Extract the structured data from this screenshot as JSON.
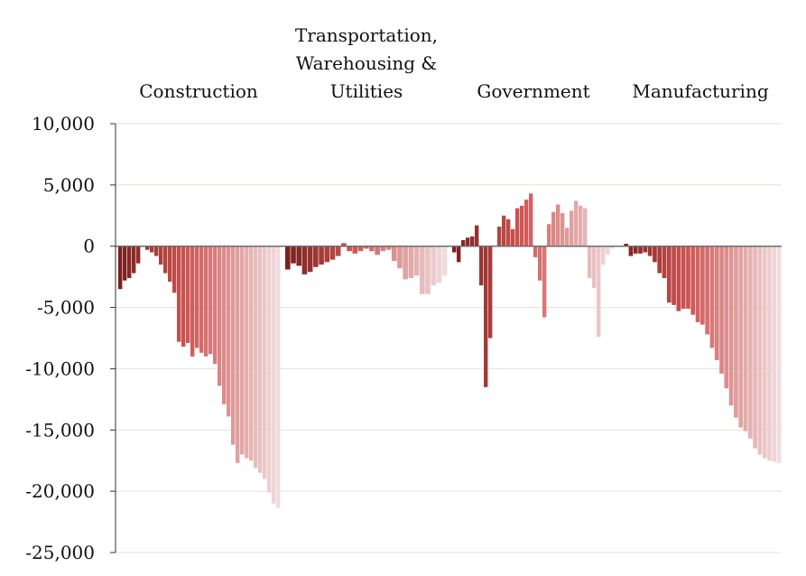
{
  "chart_data": {
    "type": "bar",
    "ylim": [
      -25000,
      10000
    ],
    "yticks": [
      10000,
      5000,
      0,
      -5000,
      -10000,
      -15000,
      -20000,
      -25000
    ],
    "ytick_labels": [
      "10,000",
      "5,000",
      "0",
      "-5,000",
      "-10,000",
      "-15,000",
      "-20,000",
      "-25,000"
    ],
    "grid": true,
    "group_labels": [
      [
        "Construction"
      ],
      [
        "Transportation,",
        "Warehousing &",
        "Utilities"
      ],
      [
        "Government"
      ],
      [
        "Manufacturing"
      ]
    ],
    "series": [
      {
        "values": [
          -3500,
          -2800,
          -2600,
          -2200,
          -1400,
          0,
          -300,
          -500,
          -800,
          -1500,
          -2200,
          -2900,
          -3800,
          -7800,
          -8200,
          -7900,
          -9000,
          -8300,
          -8700,
          -9000,
          -8800,
          -9600,
          -11400,
          -12900,
          -13900,
          -16200,
          -17700,
          -17000,
          -17300,
          -17500,
          -18100,
          -18500,
          -19000,
          -20100,
          -21000,
          -21400
        ]
      },
      {
        "values": [
          -1900,
          -1400,
          -1600,
          -2300,
          -2100,
          -1700,
          -1500,
          -1300,
          -1100,
          -800,
          250,
          -400,
          -600,
          -400,
          -200,
          -400,
          -700,
          -400,
          -300,
          -1200,
          -1800,
          -2700,
          -2600,
          -2400,
          -3900,
          -3900,
          -3200,
          -3000,
          -2400
        ]
      },
      {
        "values": [
          -500,
          -1300,
          500,
          700,
          800,
          1700,
          -3200,
          -11500,
          -7500,
          0,
          1600,
          2500,
          2200,
          1400,
          3100,
          3300,
          3800,
          4300,
          -900,
          -2800,
          -5800,
          1800,
          2800,
          3400,
          2700,
          1500,
          2900,
          3700,
          3300,
          3100,
          -2600,
          -3400,
          -7400,
          -1500,
          -700,
          -200
        ]
      },
      {
        "values": [
          0,
          200,
          -800,
          -600,
          -600,
          -500,
          -800,
          -1300,
          -2200,
          -2600,
          -4600,
          -4800,
          -5300,
          -5100,
          -5100,
          -5600,
          -6200,
          -6400,
          -7200,
          -8300,
          -9300,
          -10400,
          -11600,
          -13000,
          -14000,
          -14800,
          -15100,
          -15700,
          -16500,
          -17000,
          -17300,
          -17500,
          -17600,
          -17700
        ]
      }
    ]
  }
}
